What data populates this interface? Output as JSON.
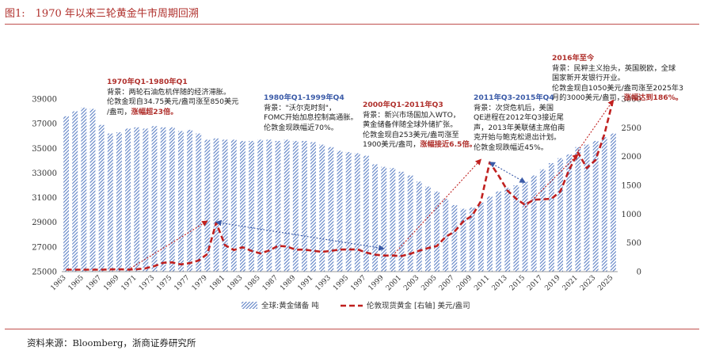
{
  "figure_title": "图1:　1970 年以来三轮黄金牛市周期回溯",
  "source": "资料来源：Bloomberg，浙商证券研究所",
  "colors": {
    "bar": "#5b7fc4",
    "line": "#c0201f",
    "annotation_red": "#b0312d",
    "annotation_blue": "#3b5ba8",
    "grid": "#d9d9d9"
  },
  "annotations": [
    {
      "id": "a1",
      "header": "1970年Q1-1980年Q1",
      "header_color": "red",
      "lines": [
        "背景：两轮石油危机伴随的经济滞胀。",
        "伦敦金现自34.75美元/盎司涨至850美元"
      ],
      "last_plain": "/盎司，",
      "last_hl": "涨幅超23倍。"
    },
    {
      "id": "a2",
      "header": "1980年Q1-1999年Q4",
      "header_color": "blue",
      "lines": [
        "背景：\"沃尔克时刻\"，",
        "FOMC开始加息控制高通胀。",
        "伦敦金现跌幅近70%。"
      ],
      "last_plain": "",
      "last_hl": ""
    },
    {
      "id": "a3",
      "header": "2000年Q1-2011年Q3",
      "header_color": "red",
      "lines": [
        "背景：新兴市场国加入WTO，",
        "黄金储备伴随全球外储扩张。",
        "伦敦金现自253美元/盎司涨至"
      ],
      "last_plain": "1900美元/盎司，",
      "last_hl": "涨幅接近6.5倍。"
    },
    {
      "id": "a4",
      "header": "2011年Q3-2015年Q4",
      "header_color": "blue",
      "lines": [
        "背景：次贷危机后，美国",
        "QE进程在2012年Q3接近尾",
        "声，2013年美联储主席伯南",
        "克开始与鲍克松退出计划。",
        "伦敦金现跌幅近45%。"
      ],
      "last_plain": "",
      "last_hl": ""
    },
    {
      "id": "a5",
      "header": "2016年至今",
      "header_color": "red",
      "lines": [
        "背景：民粹主义抬头，英国脱欧，全球",
        "国家新开发银行开业。",
        "伦敦金现自1050美元/盎司涨至2025年3"
      ],
      "last_plain": "月的3000美元/盎司，",
      "last_hl": "涨幅达到186%。"
    }
  ],
  "chart_data": {
    "type": "bar",
    "x": [
      1963,
      1964,
      1965,
      1966,
      1967,
      1968,
      1969,
      1970,
      1971,
      1972,
      1973,
      1974,
      1975,
      1976,
      1977,
      1978,
      1979,
      1980,
      1981,
      1982,
      1983,
      1984,
      1985,
      1986,
      1987,
      1988,
      1989,
      1990,
      1991,
      1992,
      1993,
      1994,
      1995,
      1996,
      1997,
      1998,
      1999,
      2000,
      2001,
      2002,
      2003,
      2004,
      2005,
      2006,
      2007,
      2008,
      2009,
      2010,
      2011,
      2012,
      2013,
      2014,
      2015,
      2016,
      2017,
      2018,
      2019,
      2020,
      2021,
      2022,
      2023,
      2024,
      2025
    ],
    "x_tick_labels": [
      "1963",
      "1965",
      "1967",
      "1969",
      "1971",
      "1973",
      "1975",
      "1977",
      "1979",
      "1981",
      "1983",
      "1985",
      "1987",
      "1989",
      "1991",
      "1993",
      "1995",
      "1997",
      "1999",
      "2001",
      "2003",
      "2005",
      "2007",
      "2009",
      "2011",
      "2013",
      "2015",
      "2017",
      "2019",
      "2021",
      "2023",
      "2025"
    ],
    "series": [
      {
        "name": "全球:黄金储备 吨",
        "type": "bar",
        "axis": "left",
        "values": [
          37600,
          38000,
          38300,
          38200,
          36900,
          36200,
          36300,
          36600,
          36700,
          36600,
          36800,
          36700,
          36700,
          36400,
          36500,
          36200,
          35700,
          35800,
          35700,
          35700,
          35600,
          35600,
          35700,
          35700,
          35600,
          35700,
          35600,
          35600,
          35500,
          35300,
          35100,
          34800,
          34700,
          34600,
          34400,
          33700,
          33500,
          33400,
          33100,
          32800,
          32300,
          31900,
          31500,
          30900,
          30400,
          30100,
          30200,
          30600,
          31100,
          31500,
          31800,
          32000,
          32300,
          32800,
          33300,
          33800,
          34200,
          34500,
          35100,
          35300,
          35600,
          35900,
          36200
        ]
      },
      {
        "name": "伦敦现货黄金 [右轴] 美元/盎司",
        "type": "line",
        "axis": "right",
        "values": [
          35,
          35,
          35,
          35,
          35,
          39,
          41,
          36,
          41,
          58,
          97,
          154,
          161,
          125,
          148,
          193,
          307,
          850,
          460,
          376,
          424,
          361,
          317,
          368,
          447,
          437,
          381,
          383,
          362,
          344,
          360,
          384,
          384,
          388,
          331,
          294,
          279,
          279,
          271,
          310,
          363,
          409,
          444,
          604,
          695,
          872,
          972,
          1224,
          1900,
          1669,
          1411,
          1266,
          1160,
          1250,
          1257,
          1268,
          1393,
          1770,
          2070,
          1800,
          1940,
          2390,
          3000
        ]
      }
    ],
    "yleft": {
      "min": 25000,
      "max": 39000,
      "ticks": [
        25000,
        27000,
        29000,
        31000,
        33000,
        35000,
        37000,
        39000
      ]
    },
    "yright": {
      "min": 0,
      "max": 3000,
      "ticks": [
        0,
        500,
        1000,
        1500,
        2000,
        2500,
        3000
      ]
    },
    "legend": [
      "全球:黄金储备 吨",
      "伦敦现货黄金 [右轴] 美元/盎司"
    ],
    "legend_position": "bottom"
  }
}
